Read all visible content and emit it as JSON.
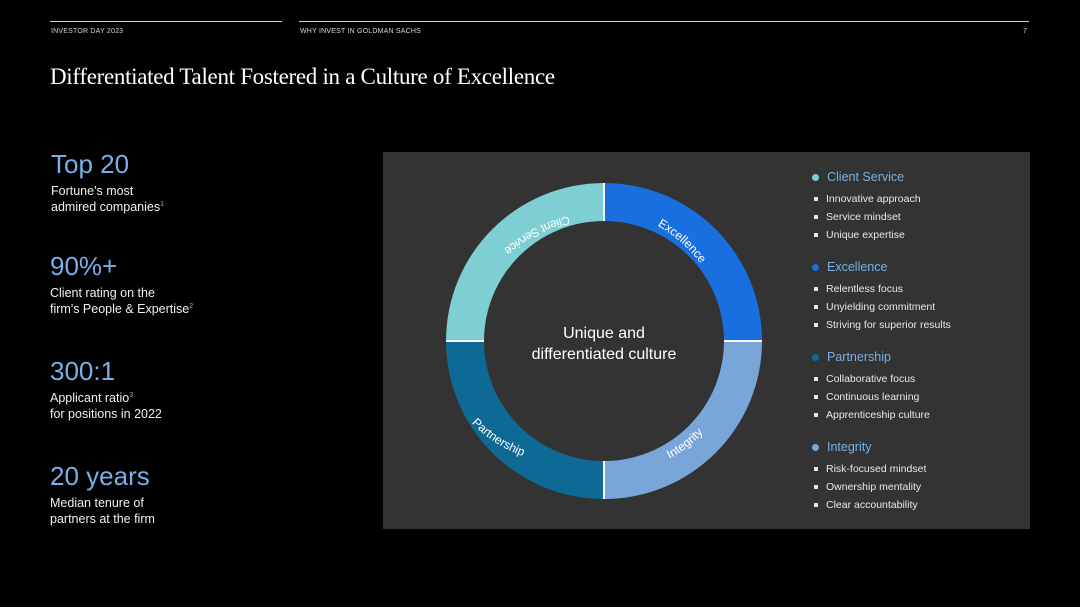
{
  "header": {
    "left": "INVESTOR DAY 2023",
    "center": "WHY INVEST IN GOLDMAN SACHS",
    "page_number": "7"
  },
  "title": "Differentiated Talent Fostered in a Culture of Excellence",
  "stats": [
    {
      "value": "Top 20",
      "line1": "Fortune's most",
      "line2": "admired companies",
      "sup": "1"
    },
    {
      "value": "90%+",
      "line1": "Client rating on the",
      "line2": "firm's People & Expertise",
      "sup": "2"
    },
    {
      "value": "300:1",
      "line1": "Applicant ratio",
      "sup1": "3",
      "line2": "for positions in 2022"
    },
    {
      "value": "20 years",
      "line1": "Median tenure of",
      "line2": "partners at the firm"
    }
  ],
  "diagram": {
    "center_line1": "Unique and",
    "center_line2": "differentiated culture",
    "segments": [
      {
        "label": "Client Service",
        "color": "#7ecfd4"
      },
      {
        "label": "Excellence",
        "color": "#1a6fe0"
      },
      {
        "label": "Integrity",
        "color": "#79a6d9"
      },
      {
        "label": "Partnership",
        "color": "#0e6a94"
      }
    ]
  },
  "legend": [
    {
      "title": "Client Service",
      "color": "#7ecfd4",
      "items": [
        "Innovative approach",
        "Service mindset",
        "Unique expertise"
      ]
    },
    {
      "title": "Excellence",
      "color": "#1a6fe0",
      "items": [
        "Relentless focus",
        "Unyielding commitment",
        "Striving for superior results"
      ]
    },
    {
      "title": "Partnership",
      "color": "#0e6a94",
      "items": [
        "Collaborative focus",
        "Continuous learning",
        "Apprenticeship culture"
      ]
    },
    {
      "title": "Integrity",
      "color": "#79a6d9",
      "items": [
        "Risk-focused mindset",
        "Ownership mentality",
        "Clear accountability"
      ]
    }
  ]
}
